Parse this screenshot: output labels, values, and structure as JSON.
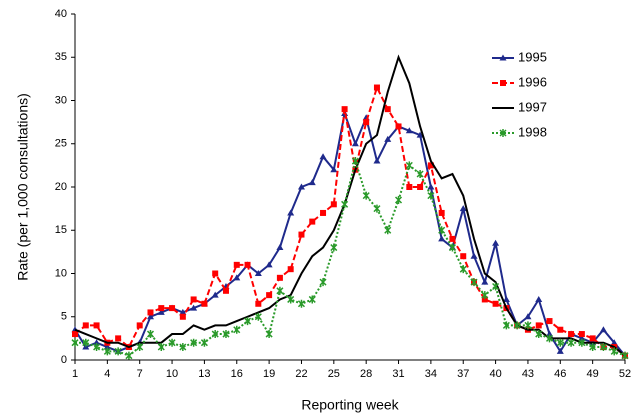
{
  "chart_data": {
    "type": "line",
    "x_label": "Reporting week",
    "y_label": "Rate (per 1,000 consultations)",
    "x": [
      1,
      2,
      3,
      4,
      5,
      6,
      7,
      8,
      9,
      10,
      11,
      12,
      13,
      14,
      15,
      16,
      17,
      18,
      19,
      20,
      21,
      22,
      23,
      24,
      25,
      26,
      27,
      28,
      29,
      30,
      31,
      32,
      33,
      34,
      35,
      36,
      37,
      38,
      39,
      40,
      41,
      42,
      43,
      44,
      45,
      46,
      47,
      48,
      49,
      50,
      51,
      52
    ],
    "series": [
      {
        "name": "1995",
        "color": "#1f2a8c",
        "marker": "triangle",
        "dash": "solid",
        "values": [
          3.5,
          1.5,
          2,
          1.5,
          1,
          1.5,
          2,
          5,
          5.5,
          6,
          5.5,
          6,
          6.5,
          7.5,
          8.5,
          9.5,
          11,
          10,
          11,
          13,
          17,
          20,
          20.5,
          23.5,
          22,
          28.5,
          25,
          28,
          23,
          25.5,
          27,
          26.5,
          26,
          20,
          14,
          13,
          17.5,
          12,
          9,
          13.5,
          7,
          4,
          5,
          7,
          3,
          1,
          3,
          2.5,
          2,
          3.5,
          2,
          0.5
        ]
      },
      {
        "name": "1996",
        "color": "#ff0000",
        "marker": "square",
        "dash": "dashed",
        "values": [
          3,
          4,
          4,
          2,
          2.5,
          1.5,
          4,
          5.5,
          6,
          6,
          5,
          7,
          6.5,
          10,
          8,
          11,
          11,
          6.5,
          7.5,
          9.5,
          10.5,
          14.5,
          16,
          17,
          18,
          29,
          22,
          27.5,
          31.5,
          29,
          27,
          20,
          20,
          22.5,
          17,
          14,
          12,
          9,
          7,
          6.5,
          6,
          4,
          3.5,
          4,
          4.5,
          3.5,
          3,
          3,
          2.5,
          1.5,
          1.5,
          0.5
        ]
      },
      {
        "name": "1997",
        "color": "#000000",
        "marker": "none",
        "dash": "solid",
        "values": [
          3.5,
          3,
          2.5,
          2,
          2,
          1.5,
          2,
          2,
          2,
          3,
          3,
          4,
          3.5,
          4,
          4,
          4.5,
          5,
          5.5,
          6,
          7,
          7.5,
          10,
          12,
          13,
          15,
          18,
          22,
          25,
          26,
          31,
          35,
          32,
          27,
          23,
          21,
          21.5,
          19,
          14,
          10,
          9,
          6,
          4,
          3.5,
          3.5,
          2.5,
          2.5,
          2.5,
          2,
          2,
          2,
          1.5,
          0.5
        ]
      },
      {
        "name": "1998",
        "color": "#2a9a2a",
        "marker": "star",
        "dash": "dotted",
        "values": [
          2,
          2,
          1.5,
          1,
          1,
          0.5,
          1.5,
          3,
          1.5,
          2,
          1.5,
          2,
          2,
          3,
          3,
          3.5,
          4.5,
          5,
          3,
          8,
          7,
          6.5,
          7,
          9,
          13,
          18,
          23,
          19,
          17.5,
          15,
          18.5,
          22.5,
          21.5,
          19,
          15,
          13,
          10.5,
          9,
          7.5,
          8.5,
          4,
          4,
          4,
          3,
          2.5,
          2,
          2,
          2,
          1.5,
          1.5,
          1,
          0.5
        ]
      }
    ],
    "xlim": [
      1,
      52
    ],
    "xticks": [
      1,
      4,
      7,
      10,
      13,
      16,
      19,
      22,
      25,
      28,
      31,
      34,
      37,
      40,
      43,
      46,
      49,
      52
    ],
    "ylim": [
      0,
      40
    ],
    "yticks": [
      0,
      5,
      10,
      15,
      20,
      25,
      30,
      35,
      40
    ],
    "grid": false,
    "legend": "upper right"
  }
}
